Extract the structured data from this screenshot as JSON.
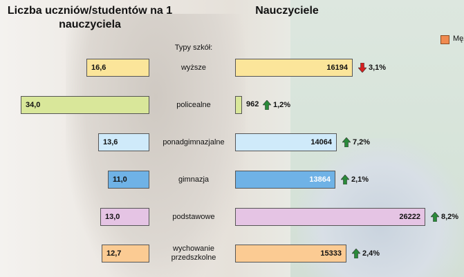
{
  "chart_data": {
    "type": "bar",
    "title_left": "Liczba uczniów/studentów na 1 nauczyciela",
    "title_right": "Nauczyciele",
    "legend_label": "Męż",
    "category_header": "Typy szkół:",
    "categories": [
      "wyższe",
      "policealne",
      "ponadgimnazjalne",
      "gimnazja",
      "podstawowe",
      "wychowanie przedszkolne"
    ],
    "series": [
      {
        "values": [
          16.6,
          34.0,
          13.6,
          11.0,
          13.0,
          12.7
        ],
        "labels": [
          "16,6",
          "34,0",
          "13,6",
          "11,0",
          "13,0",
          "12,7"
        ]
      },
      {
        "values": [
          16194,
          962,
          14064,
          13864,
          26222,
          15333
        ],
        "labels": [
          "16194",
          "962",
          "14064",
          "13864",
          "26222",
          "15333"
        ]
      }
    ],
    "changes": [
      {
        "label": "3,1%",
        "direction": "down"
      },
      {
        "label": "1,2%",
        "direction": "up"
      },
      {
        "label": "7,2%",
        "direction": "up"
      },
      {
        "label": "2,1%",
        "direction": "up"
      },
      {
        "label": "8,2%",
        "direction": "up"
      },
      {
        "label": "2,4%",
        "direction": "up"
      }
    ],
    "colors": [
      "#fbe59a",
      "#d9e79a",
      "#cfeafa",
      "#6fb2e6",
      "#e5c4e4",
      "#fbcb93"
    ],
    "text_colors": [
      "#111111",
      "#111111",
      "#111111",
      "#111111",
      "#111111",
      "#111111"
    ],
    "right_text_colors": [
      "#111111",
      "#111111",
      "#111111",
      "#ffffff",
      "#111111",
      "#111111"
    ],
    "arrow_colors": {
      "up": "#2a8a3a",
      "down": "#d62020"
    },
    "legend_color": "#f08a50"
  }
}
